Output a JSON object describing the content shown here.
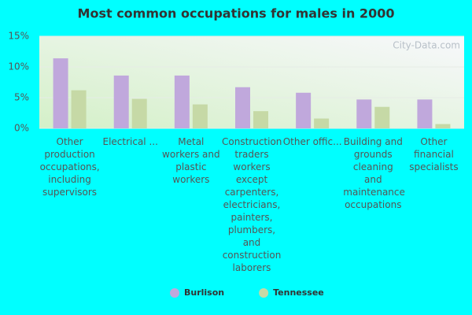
{
  "chart_data": {
    "type": "bar",
    "title": "Most common occupations for males in 2000",
    "watermark": "City-Data.com",
    "categories": [
      "Other production occupations, including supervisors",
      "Electrical ...",
      "Metal workers and plastic workers",
      "Construction traders workers except carpenters, electricians, painters, plumbers, and construction laborers",
      "Other offic...",
      "Building and grounds cleaning and maintenance occupations",
      "Other financial specialists"
    ],
    "series": [
      {
        "name": "Burlison",
        "color": "#c0a8dc",
        "values": [
          11.4,
          8.6,
          8.6,
          6.7,
          5.8,
          4.7,
          4.7
        ]
      },
      {
        "name": "Tennessee",
        "color": "#c6d9a6",
        "values": [
          6.2,
          4.8,
          3.9,
          2.8,
          1.6,
          3.5,
          0.7
        ]
      }
    ],
    "ylim": [
      0,
      15
    ],
    "yticks": [
      {
        "value": 0,
        "label": "0%"
      },
      {
        "value": 5,
        "label": "5%"
      },
      {
        "value": 10,
        "label": "10%"
      },
      {
        "value": 15,
        "label": "15%"
      }
    ],
    "grid": true
  }
}
